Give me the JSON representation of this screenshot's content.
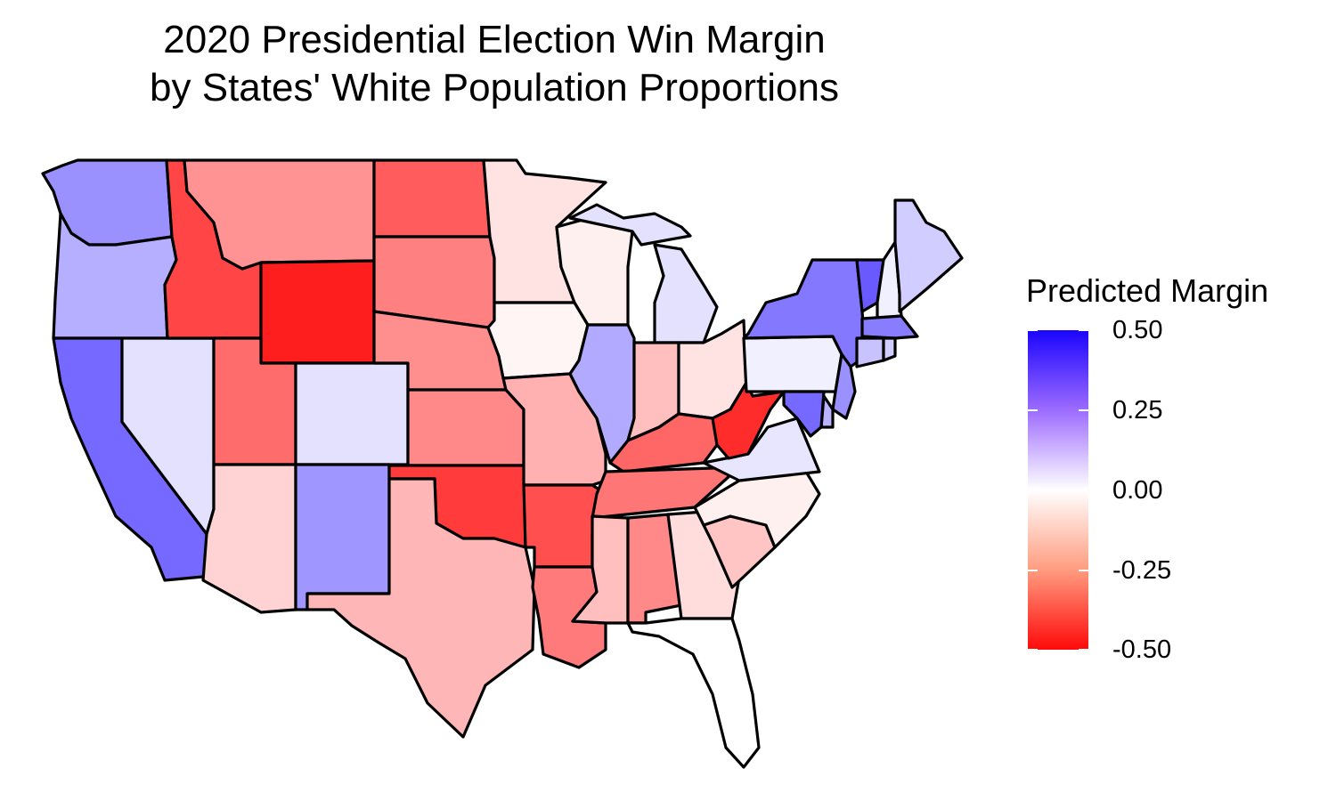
{
  "chart_data": {
    "type": "map",
    "title_lines": [
      "2020 Presidential Election Win Margin",
      "by States' White Population Proportions"
    ],
    "legend": {
      "title": "Predicted Margin",
      "ticks": [
        "0.50",
        "0.25",
        "0.00",
        "-0.25",
        "-0.50"
      ],
      "range": [
        -0.5,
        0.5
      ],
      "colors": {
        "high": "#1a05ff",
        "mid": "#ffffff",
        "low": "#ff0a0a"
      },
      "placement": "right"
    },
    "states": [
      {
        "name": "Washington",
        "value": 0.22
      },
      {
        "name": "Oregon",
        "value": 0.16
      },
      {
        "name": "California",
        "value": 0.3
      },
      {
        "name": "Nevada",
        "value": 0.06
      },
      {
        "name": "Idaho",
        "value": -0.38
      },
      {
        "name": "Montana",
        "value": -0.22
      },
      {
        "name": "Wyoming",
        "value": -0.46
      },
      {
        "name": "Utah",
        "value": -0.3
      },
      {
        "name": "Arizona",
        "value": -0.09
      },
      {
        "name": "Colorado",
        "value": 0.06
      },
      {
        "name": "New Mexico",
        "value": 0.21
      },
      {
        "name": "North Dakota",
        "value": -0.33
      },
      {
        "name": "South Dakota",
        "value": -0.26
      },
      {
        "name": "Nebraska",
        "value": -0.23
      },
      {
        "name": "Kansas",
        "value": -0.24
      },
      {
        "name": "Oklahoma",
        "value": -0.4
      },
      {
        "name": "Texas",
        "value": -0.15
      },
      {
        "name": "Minnesota",
        "value": -0.06
      },
      {
        "name": "Iowa",
        "value": -0.02
      },
      {
        "name": "Missouri",
        "value": -0.16
      },
      {
        "name": "Arkansas",
        "value": -0.36
      },
      {
        "name": "Louisiana",
        "value": -0.27
      },
      {
        "name": "Wisconsin",
        "value": -0.03
      },
      {
        "name": "Illinois",
        "value": 0.17
      },
      {
        "name": "Michigan",
        "value": 0.06
      },
      {
        "name": "Indiana",
        "value": -0.13
      },
      {
        "name": "Ohio",
        "value": -0.06
      },
      {
        "name": "Kentucky",
        "value": -0.31
      },
      {
        "name": "Tennessee",
        "value": -0.28
      },
      {
        "name": "Mississippi",
        "value": -0.13
      },
      {
        "name": "Alabama",
        "value": -0.24
      },
      {
        "name": "Georgia",
        "value": -0.07
      },
      {
        "name": "Florida",
        "value": 0.0
      },
      {
        "name": "South Carolina",
        "value": -0.12
      },
      {
        "name": "North Carolina",
        "value": -0.03
      },
      {
        "name": "Virginia",
        "value": 0.05
      },
      {
        "name": "West Virginia",
        "value": -0.43
      },
      {
        "name": "Pennsylvania",
        "value": 0.03
      },
      {
        "name": "New York",
        "value": 0.27
      },
      {
        "name": "Vermont",
        "value": 0.33
      },
      {
        "name": "New Hampshire",
        "value": 0.03
      },
      {
        "name": "Maine",
        "value": 0.1
      },
      {
        "name": "Massachusetts",
        "value": 0.26
      },
      {
        "name": "Connecticut",
        "value": 0.12
      },
      {
        "name": "Rhode Island",
        "value": 0.1
      },
      {
        "name": "New Jersey",
        "value": 0.22
      },
      {
        "name": "Delaware",
        "value": 0.15
      },
      {
        "name": "Maryland",
        "value": 0.3
      }
    ]
  }
}
